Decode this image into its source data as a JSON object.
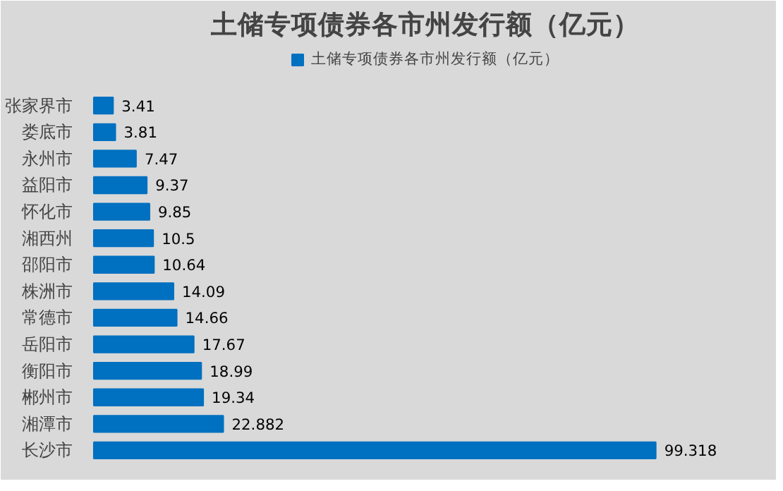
{
  "chart_data": {
    "type": "bar",
    "orientation": "horizontal",
    "title": "土储专项债券各市州发行额（亿元）",
    "categories": [
      "张家界市",
      "娄底市",
      "永州市",
      "益阳市",
      "怀化市",
      "湘西州",
      "邵阳市",
      "株洲市",
      "常德市",
      "岳阳市",
      "衡阳市",
      "郴州市",
      "湘潭市",
      "长沙市"
    ],
    "series": [
      {
        "name": "土储专项债券各市州发行额（亿元）",
        "color": "#0070c0",
        "values": [
          3.41,
          3.81,
          7.47,
          9.37,
          9.85,
          10.5,
          10.64,
          14.09,
          14.66,
          17.67,
          18.99,
          19.34,
          22.882,
          99.318
        ]
      }
    ],
    "data_labels": true,
    "legend": "top",
    "grid": false
  }
}
